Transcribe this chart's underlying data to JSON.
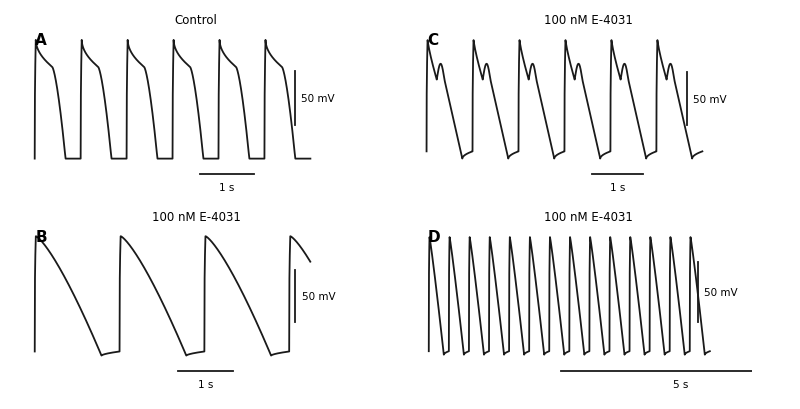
{
  "panels": [
    "A",
    "B",
    "C",
    "D"
  ],
  "titles": {
    "A": "Control",
    "B": "100 nM E-4031",
    "C": "100 nM E-4031",
    "D": "100 nM E-4031"
  },
  "bg_color": "#ffffff",
  "line_color": "#1a1a1a",
  "line_width": 1.3,
  "panel_A": {
    "n_aps": 6,
    "period": 0.85,
    "rest": -75,
    "peak": 35,
    "plateau": 10,
    "up_dur": 0.02,
    "plateau_dur": 0.3,
    "repol_dur": 0.25,
    "diastole_dur": 0.28
  },
  "panel_B": {
    "n_aps": 3,
    "period": 1.55,
    "rest": -78,
    "peak": 33,
    "trough": -82,
    "up_dur": 0.02,
    "repol_dur": 1.2,
    "recovery_dur": 0.33
  },
  "panel_C": {
    "n_aps": 6,
    "period": 0.9,
    "rest": -78,
    "peak": 28,
    "notch": -10,
    "ead_peak": 5,
    "trough": -85,
    "up_dur": 0.02,
    "notch_dur": 0.18,
    "ead_dur": 0.15,
    "repol_dur": 0.35,
    "diastole_dur": 0.2
  },
  "panel_D": {
    "n_aps": 14,
    "period": 0.42,
    "rest": -65,
    "peak": 30,
    "trough": -68,
    "up_dur": 0.015,
    "repol_dur": 0.3,
    "diastole_dur": 0.105
  }
}
